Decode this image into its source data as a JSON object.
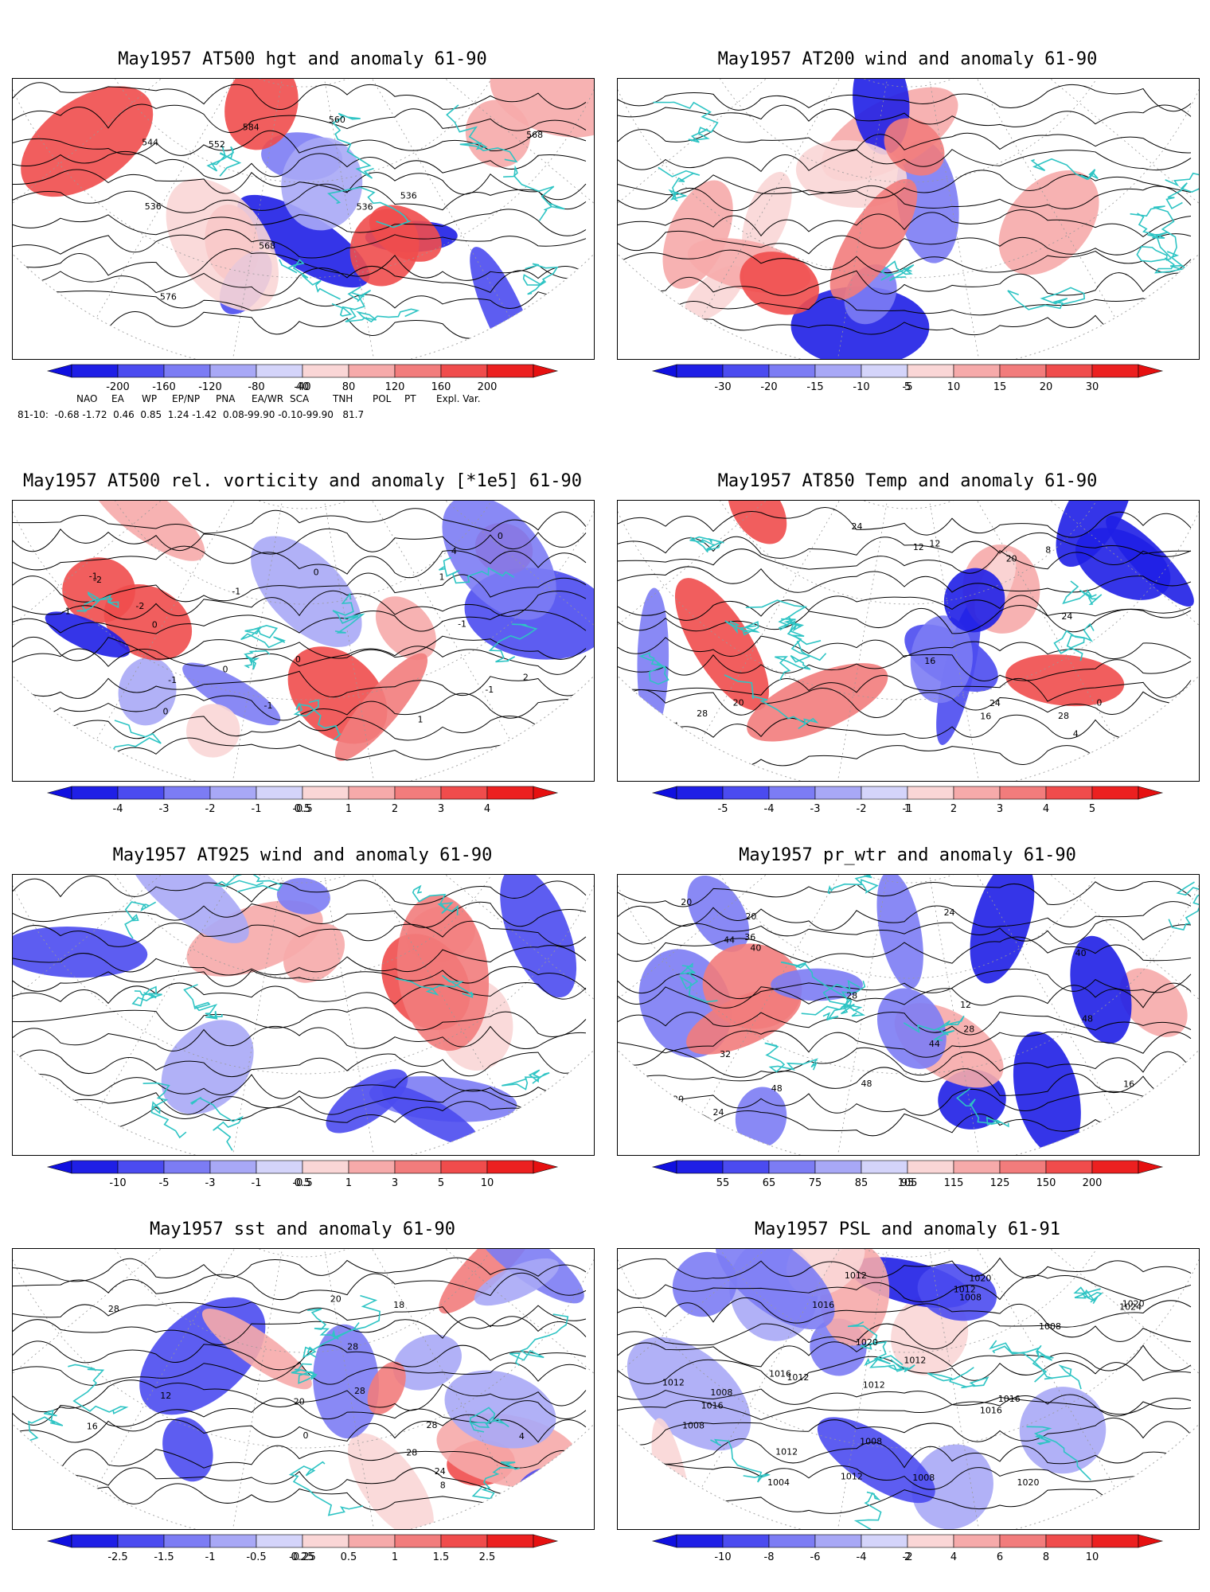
{
  "panels": [
    {
      "id": "p1",
      "title": "May1957 AT500 hgt and anomaly 61-90",
      "contour_labels": [
        "536",
        "536",
        "536",
        "544",
        "552",
        "560",
        "568",
        "576",
        "584",
        "568"
      ],
      "colorbar": [
        "-200",
        "-160",
        "-120",
        "-80",
        "-40",
        "40",
        "80",
        "120",
        "160",
        "200"
      ]
    },
    {
      "id": "p2",
      "title": "May1957 AT200 wind and anomaly 61-90",
      "contour_labels": [],
      "colorbar": [
        "-30",
        "-20",
        "-15",
        "-10",
        "-5",
        "5",
        "10",
        "15",
        "20",
        "30"
      ]
    },
    {
      "id": "p3",
      "title": "May1957 AT500 rel. vorticity and anomaly [*1e5] 61-90",
      "contour_labels": [
        "-1",
        "-2",
        "-1",
        "2",
        "4",
        "1",
        "0",
        "-1",
        "-1",
        "0",
        "-2",
        "0",
        "1",
        "-1",
        "0",
        "-1",
        "0",
        "-1",
        "-1",
        "0"
      ],
      "colorbar": [
        "-4",
        "-3",
        "-2",
        "-1",
        "-0.5",
        "0.5",
        "1",
        "2",
        "3",
        "4"
      ]
    },
    {
      "id": "p4",
      "title": "May1957 AT850 Temp and anomaly 61-90",
      "contour_labels": [
        "16",
        "20",
        "8",
        "4",
        "12",
        "0",
        "4",
        "24",
        "16",
        "12",
        "16",
        "28",
        "24",
        "20",
        "28",
        "24"
      ],
      "colorbar": [
        "-5",
        "-4",
        "-3",
        "-2",
        "-1",
        "1",
        "2",
        "3",
        "4",
        "5"
      ]
    },
    {
      "id": "p5",
      "title": "May1957 AT925 wind and anomaly 61-90",
      "contour_labels": [],
      "colorbar": [
        "-10",
        "-5",
        "-3",
        "-1",
        "-0.5",
        "0.5",
        "1",
        "3",
        "5",
        "10"
      ]
    },
    {
      "id": "p6",
      "title": "May1957 pr_wtr and anomaly 61-90",
      "contour_labels": [
        "16",
        "32",
        "48",
        "12",
        "20",
        "24",
        "28",
        "20",
        "16",
        "24",
        "40",
        "36",
        "44",
        "48",
        "20",
        "28",
        "40",
        "48",
        "44"
      ],
      "colorbar": [
        "55",
        "65",
        "75",
        "85",
        "95",
        "105",
        "115",
        "125",
        "150",
        "200"
      ]
    },
    {
      "id": "p7",
      "title": "May1957 sst and anomaly 61-90",
      "contour_labels": [
        "28",
        "28",
        "4",
        "0",
        "8",
        "12",
        "16",
        "20",
        "18",
        "28",
        "24",
        "28",
        "20",
        "28"
      ],
      "colorbar": [
        "-2.5",
        "-1.5",
        "-1",
        "-0.5",
        "-0.25",
        "0.25",
        "0.5",
        "1",
        "1.5",
        "2.5"
      ]
    },
    {
      "id": "p8",
      "title": "May1957 PSL and anomaly 61-91",
      "contour_labels": [
        "1012",
        "1016",
        "1016",
        "1012",
        "1008",
        "1016",
        "1020",
        "1024",
        "1020",
        "1020",
        "1016",
        "1012",
        "1012",
        "1008",
        "1004",
        "1008",
        "1012",
        "1008",
        "1020",
        "1016",
        "1008",
        "1012",
        "1012",
        "1008",
        "1012"
      ],
      "colorbar": [
        "-10",
        "-8",
        "-6",
        "-4",
        "-2",
        "2",
        "4",
        "6",
        "8",
        "10"
      ]
    }
  ],
  "indices": {
    "names": [
      "NAO",
      "EA",
      "WP",
      "EP/NP",
      "PNA",
      "EA/WR",
      "SCA",
      "TNH",
      "POL",
      "PT",
      "Expl. Var."
    ],
    "row_label": "81-10:",
    "row_text": "81-10:  -0.68 -1.72  0.46  0.85  1.24 -1.42  0.08-99.90 -0.10-99.90   81.7"
  },
  "colors": {
    "coast": "#2ec4c4",
    "blues": [
      "#1f1fe6",
      "#4b4bf0",
      "#7c7cf4",
      "#a8a8f6",
      "#d4d4fa"
    ],
    "reds": [
      "#fad6d6",
      "#f6aaaa",
      "#f27c7c",
      "#f04c4c",
      "#ec2020"
    ]
  }
}
